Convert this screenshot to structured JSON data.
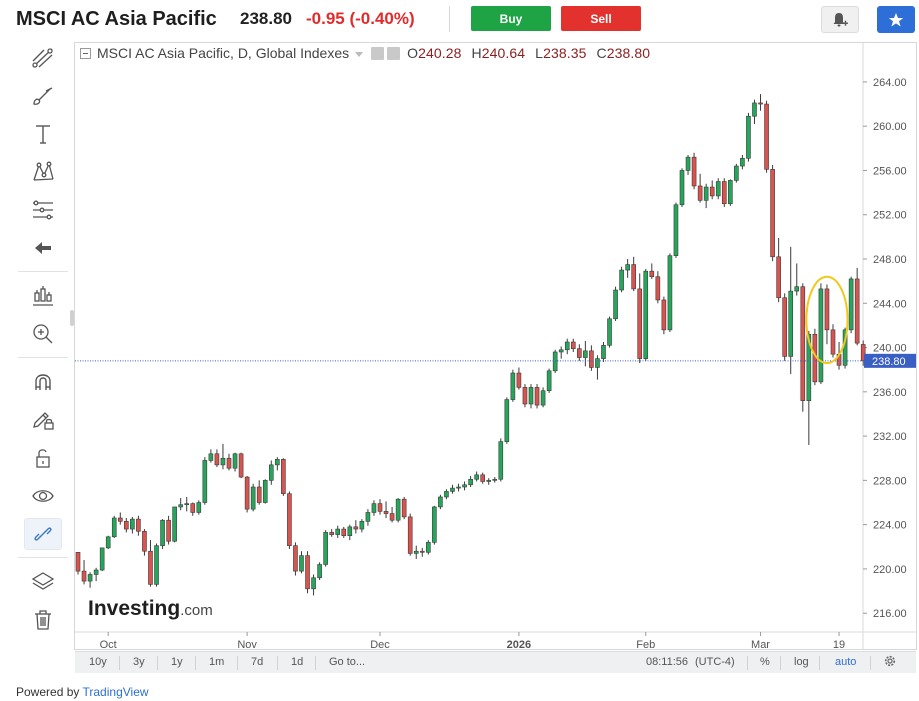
{
  "header": {
    "instrument": "MSCI AC Asia Pacific",
    "last": "238.80",
    "change": "-0.95 (-0.40%)",
    "buy_label": "Buy",
    "sell_label": "Sell",
    "colors": {
      "buy": "#1ea345",
      "sell": "#e3312e",
      "down_text": "#e02c2c",
      "star_button": "#2d6fd6"
    }
  },
  "toolbar": {
    "items": [
      "cross-lines-icon",
      "brush-icon",
      "text-icon",
      "pattern-icon",
      "fib-icon",
      "back-arrow-icon",
      "measure-icon",
      "zoom-in-icon",
      "magnet-icon",
      "pencil-lock-icon",
      "lock-icon",
      "eye-icon",
      "link-icon",
      "layers-icon",
      "trash-icon"
    ]
  },
  "legend": {
    "title": "MSCI AC Asia Pacific, D, Global Indexes",
    "o_label": "O",
    "o": "240.28",
    "h_label": "H",
    "h": "240.64",
    "l_label": "L",
    "l": "238.35",
    "c_label": "C",
    "c": "238.80"
  },
  "watermark": {
    "brand": "Investing",
    "suffix": ".com"
  },
  "bottom_bar": {
    "ranges": [
      "10y",
      "3y",
      "1y",
      "1m",
      "7d",
      "1d"
    ],
    "goto": "Go to...",
    "time": "08:11:56",
    "tz": "(UTC-4)",
    "pct": "%",
    "log": "log",
    "auto": "auto"
  },
  "powered": {
    "prefix": "Powered by",
    "brand": "TradingView"
  },
  "chart_data": {
    "type": "candlestick",
    "interval": "D",
    "y_ticks": [
      216,
      220,
      224,
      228,
      232,
      236,
      240,
      244,
      248,
      252,
      256,
      260,
      264
    ],
    "y_tick_labels": [
      "216.00",
      "220.00",
      "224.00",
      "228.00",
      "232.00",
      "236.00",
      "240.00",
      "244.00",
      "248.00",
      "252.00",
      "256.00",
      "260.00",
      "264.00"
    ],
    "ylim": [
      214.3,
      265.8
    ],
    "x_ticks": [
      {
        "label": "Oct",
        "bar": 5
      },
      {
        "label": "Nov",
        "bar": 28
      },
      {
        "label": "Dec",
        "bar": 50
      },
      {
        "label": "2026",
        "bar": 73
      },
      {
        "label": "Feb",
        "bar": 94
      },
      {
        "label": "Mar",
        "bar": 113
      },
      {
        "label": "19",
        "bar": 126
      }
    ],
    "last_price": 238.8,
    "last_price_label": "238.80",
    "colors": {
      "up": "#26a65b",
      "down": "#d9534f",
      "last_line": "#3a5fc4",
      "annotation": "#f2c81a"
    },
    "annotation": {
      "type": "ellipse",
      "center_bar": 124,
      "center_price": 242.5,
      "bars_half_width": 3.4,
      "price_half_height": 3.9
    },
    "ohlc": [
      [
        221.5,
        221.5,
        219.5,
        219.8
      ],
      [
        219.8,
        220.8,
        218.6,
        218.9
      ],
      [
        218.9,
        219.7,
        218.3,
        219.5
      ],
      [
        219.5,
        220.1,
        218.9,
        219.9
      ],
      [
        219.9,
        221.9,
        219.8,
        221.9
      ],
      [
        221.9,
        223.0,
        221.8,
        222.9
      ],
      [
        222.9,
        224.8,
        222.8,
        224.6
      ],
      [
        224.6,
        225.1,
        224.0,
        224.3
      ],
      [
        224.3,
        224.6,
        223.3,
        223.6
      ],
      [
        223.6,
        224.7,
        223.2,
        224.5
      ],
      [
        224.5,
        224.8,
        223.0,
        223.4
      ],
      [
        223.4,
        223.6,
        221.2,
        221.6
      ],
      [
        221.6,
        222.6,
        218.4,
        218.6
      ],
      [
        218.6,
        222.3,
        218.4,
        222.1
      ],
      [
        222.1,
        224.5,
        221.8,
        224.4
      ],
      [
        224.4,
        224.8,
        222.2,
        222.5
      ],
      [
        222.5,
        225.6,
        222.4,
        225.6
      ],
      [
        225.6,
        226.4,
        225.3,
        225.8
      ],
      [
        225.8,
        226.5,
        225.2,
        225.9
      ],
      [
        225.9,
        226.0,
        224.8,
        225.1
      ],
      [
        225.1,
        226.2,
        224.9,
        226.0
      ],
      [
        226.0,
        230.1,
        225.8,
        229.8
      ],
      [
        229.8,
        230.8,
        229.6,
        230.4
      ],
      [
        230.4,
        230.8,
        229.2,
        229.4
      ],
      [
        229.4,
        231.3,
        229.0,
        230.0
      ],
      [
        230.0,
        230.4,
        228.9,
        229.1
      ],
      [
        229.1,
        230.5,
        228.8,
        230.4
      ],
      [
        230.4,
        230.5,
        228.2,
        228.3
      ],
      [
        228.3,
        228.4,
        225.1,
        225.4
      ],
      [
        225.4,
        227.7,
        225.2,
        227.4
      ],
      [
        227.4,
        228.0,
        225.8,
        226.0
      ],
      [
        226.0,
        228.1,
        225.9,
        228.0
      ],
      [
        228.0,
        229.8,
        227.6,
        229.4
      ],
      [
        229.4,
        230.1,
        228.9,
        229.9
      ],
      [
        229.9,
        230.0,
        226.6,
        226.8
      ],
      [
        226.8,
        227.0,
        221.8,
        222.1
      ],
      [
        222.1,
        222.4,
        219.4,
        219.8
      ],
      [
        219.8,
        221.6,
        219.6,
        221.2
      ],
      [
        221.2,
        221.6,
        217.8,
        218.2
      ],
      [
        218.2,
        219.5,
        217.6,
        219.2
      ],
      [
        219.2,
        220.6,
        219.0,
        220.4
      ],
      [
        220.4,
        223.5,
        220.2,
        223.3
      ],
      [
        223.3,
        223.6,
        222.9,
        223.1
      ],
      [
        223.1,
        223.9,
        222.8,
        223.6
      ],
      [
        223.6,
        223.8,
        222.8,
        223.0
      ],
      [
        223.0,
        224.0,
        222.6,
        223.8
      ],
      [
        223.8,
        224.4,
        223.2,
        223.6
      ],
      [
        223.6,
        224.5,
        223.3,
        224.3
      ],
      [
        224.3,
        225.4,
        223.9,
        225.1
      ],
      [
        225.1,
        226.2,
        224.8,
        225.9
      ],
      [
        225.9,
        226.3,
        224.9,
        225.2
      ],
      [
        225.2,
        226.1,
        224.6,
        225.0
      ],
      [
        225.0,
        225.6,
        224.2,
        224.4
      ],
      [
        224.4,
        226.4,
        224.2,
        226.3
      ],
      [
        226.3,
        226.5,
        224.5,
        224.7
      ],
      [
        224.7,
        225.0,
        221.2,
        221.4
      ],
      [
        221.4,
        222.1,
        220.9,
        221.6
      ],
      [
        221.6,
        221.9,
        221.1,
        221.5
      ],
      [
        221.5,
        222.6,
        221.3,
        222.4
      ],
      [
        222.4,
        225.7,
        222.2,
        225.6
      ],
      [
        225.6,
        226.7,
        225.4,
        226.5
      ],
      [
        226.5,
        227.2,
        226.3,
        227.0
      ],
      [
        227.0,
        227.6,
        226.8,
        227.3
      ],
      [
        227.3,
        227.7,
        227.0,
        227.4
      ],
      [
        227.4,
        227.9,
        227.1,
        227.6
      ],
      [
        227.6,
        228.4,
        227.4,
        228.1
      ],
      [
        228.1,
        228.8,
        227.9,
        228.5
      ],
      [
        228.5,
        228.7,
        227.7,
        227.9
      ],
      [
        227.9,
        228.2,
        227.6,
        228.0
      ],
      [
        228.0,
        228.3,
        227.8,
        228.1
      ],
      [
        228.1,
        231.8,
        227.9,
        231.5
      ],
      [
        231.5,
        235.5,
        231.3,
        235.3
      ],
      [
        235.3,
        238.0,
        235.1,
        237.7
      ],
      [
        237.7,
        238.2,
        236.2,
        236.4
      ],
      [
        236.4,
        236.7,
        234.6,
        234.9
      ],
      [
        234.9,
        236.7,
        234.5,
        236.4
      ],
      [
        236.4,
        236.7,
        234.5,
        234.8
      ],
      [
        234.8,
        236.4,
        234.6,
        236.1
      ],
      [
        236.1,
        238.1,
        235.9,
        237.9
      ],
      [
        237.9,
        239.8,
        237.7,
        239.6
      ],
      [
        239.6,
        240.1,
        239.0,
        239.8
      ],
      [
        239.8,
        240.8,
        239.4,
        240.5
      ],
      [
        240.5,
        240.8,
        239.6,
        239.9
      ],
      [
        239.9,
        240.3,
        238.8,
        239.1
      ],
      [
        239.1,
        240.6,
        238.3,
        239.7
      ],
      [
        239.7,
        240.2,
        237.9,
        238.2
      ],
      [
        238.2,
        239.3,
        237.1,
        239.0
      ],
      [
        239.0,
        240.5,
        238.7,
        240.2
      ],
      [
        240.2,
        242.8,
        240.0,
        242.6
      ],
      [
        242.6,
        245.5,
        242.4,
        245.2
      ],
      [
        245.2,
        247.3,
        245.0,
        247.0
      ],
      [
        247.0,
        248.0,
        246.3,
        247.5
      ],
      [
        247.5,
        248.2,
        245.1,
        245.3
      ],
      [
        245.3,
        246.7,
        238.6,
        239.0
      ],
      [
        239.0,
        247.1,
        238.8,
        246.9
      ],
      [
        246.9,
        247.6,
        246.2,
        246.4
      ],
      [
        246.4,
        246.9,
        244.0,
        244.3
      ],
      [
        244.3,
        244.6,
        241.2,
        241.6
      ],
      [
        241.6,
        248.5,
        241.4,
        248.3
      ],
      [
        248.3,
        253.1,
        248.1,
        252.9
      ],
      [
        252.9,
        256.2,
        252.7,
        256.0
      ],
      [
        256.0,
        257.4,
        255.6,
        257.2
      ],
      [
        257.2,
        257.6,
        254.3,
        254.6
      ],
      [
        254.6,
        255.7,
        253.1,
        253.3
      ],
      [
        253.3,
        254.8,
        252.6,
        254.5
      ],
      [
        254.5,
        255.1,
        253.4,
        253.7
      ],
      [
        253.7,
        255.3,
        253.4,
        255.0
      ],
      [
        255.0,
        255.3,
        252.7,
        253.0
      ],
      [
        253.0,
        255.2,
        252.8,
        255.1
      ],
      [
        255.1,
        256.6,
        254.9,
        256.4
      ],
      [
        256.4,
        257.4,
        256.1,
        257.1
      ],
      [
        257.1,
        261.2,
        256.8,
        260.9
      ],
      [
        260.9,
        262.4,
        260.2,
        262.1
      ],
      [
        262.1,
        262.9,
        261.4,
        262.0
      ],
      [
        262.0,
        262.3,
        255.8,
        256.1
      ],
      [
        256.1,
        256.5,
        247.8,
        248.2
      ],
      [
        248.2,
        249.9,
        244.1,
        244.5
      ],
      [
        244.5,
        244.9,
        238.8,
        239.2
      ],
      [
        239.2,
        249.1,
        237.6,
        245.1
      ],
      [
        245.1,
        247.6,
        244.7,
        245.5
      ],
      [
        245.5,
        245.8,
        234.2,
        235.2
      ],
      [
        235.2,
        241.5,
        231.2,
        241.2
      ],
      [
        241.2,
        241.7,
        236.6,
        236.9
      ],
      [
        236.9,
        245.8,
        236.7,
        245.3
      ],
      [
        245.3,
        245.7,
        240.3,
        241.6
      ],
      [
        241.6,
        242.1,
        239.1,
        239.4
      ],
      [
        239.4,
        240.5,
        238.0,
        238.4
      ],
      [
        238.4,
        241.8,
        238.1,
        241.6
      ],
      [
        241.6,
        246.4,
        241.3,
        246.2
      ],
      [
        246.2,
        247.2,
        240.2,
        240.4
      ],
      [
        240.28,
        240.64,
        238.35,
        238.8
      ]
    ]
  }
}
